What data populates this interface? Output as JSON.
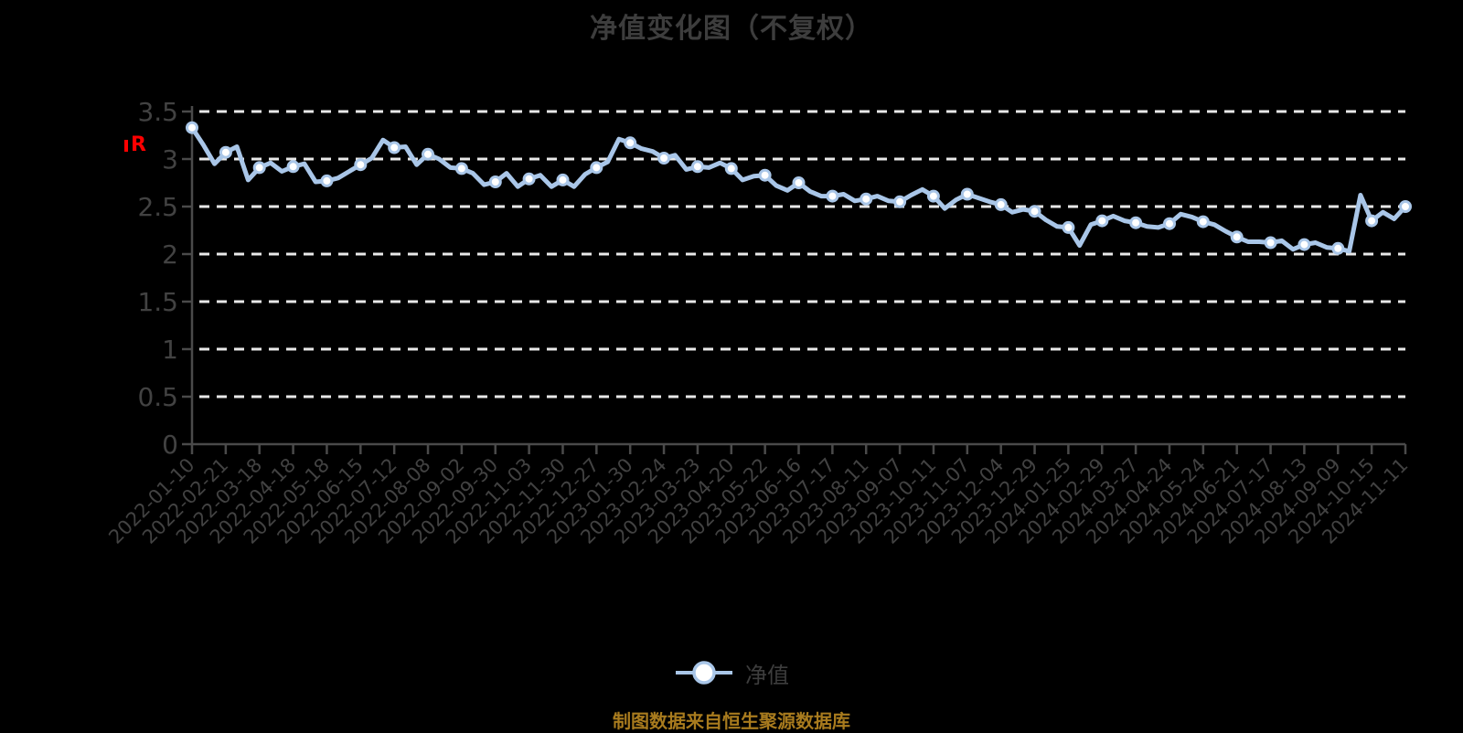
{
  "chart": {
    "title": "净值变化图（不复权）",
    "red_mark": "R"
  },
  "legend": {
    "label": "净值"
  },
  "footer": {
    "source": "制图数据来自恒生聚源数据库"
  },
  "chart_data": {
    "type": "line",
    "title": "净值变化图（不复权）",
    "series_name": "净值",
    "legend_position": "bottom-center",
    "grid": "horizontal-dashed",
    "ylim": [
      0,
      3.5
    ],
    "y_ticks": [
      0,
      0.5,
      1,
      1.5,
      2,
      2.5,
      3,
      3.5
    ],
    "y_tick_labels": [
      "0",
      "0.5",
      "1",
      "1.5",
      "2",
      "2.5",
      "3",
      "3.5"
    ],
    "x_tick_labels": [
      "2022-01-10",
      "2022-02-21",
      "2022-03-18",
      "2022-04-18",
      "2022-05-18",
      "2022-06-15",
      "2022-07-12",
      "2022-08-08",
      "2022-09-02",
      "2022-09-30",
      "2022-11-03",
      "2022-11-30",
      "2022-12-27",
      "2023-01-30",
      "2023-02-24",
      "2023-03-23",
      "2023-04-20",
      "2023-05-22",
      "2023-06-16",
      "2023-07-17",
      "2023-08-11",
      "2023-09-07",
      "2023-10-11",
      "2023-11-07",
      "2023-12-04",
      "2023-12-29",
      "2024-01-25",
      "2024-02-29",
      "2024-03-27",
      "2024-04-24",
      "2024-05-24",
      "2024-06-21",
      "2024-07-17",
      "2024-08-13",
      "2024-09-09",
      "2024-10-15",
      "2024-11-11"
    ],
    "marker_every": 3,
    "values": [
      3.33,
      3.15,
      2.95,
      3.07,
      3.13,
      2.78,
      2.91,
      2.96,
      2.87,
      2.92,
      2.95,
      2.76,
      2.77,
      2.8,
      2.87,
      2.94,
      3.01,
      3.2,
      3.12,
      3.13,
      2.94,
      3.05,
      3.0,
      2.91,
      2.9,
      2.85,
      2.73,
      2.76,
      2.85,
      2.71,
      2.79,
      2.83,
      2.71,
      2.78,
      2.71,
      2.84,
      2.91,
      2.97,
      3.21,
      3.17,
      3.11,
      3.08,
      3.01,
      3.04,
      2.89,
      2.92,
      2.91,
      2.96,
      2.9,
      2.78,
      2.82,
      2.83,
      2.72,
      2.67,
      2.75,
      2.66,
      2.61,
      2.61,
      2.63,
      2.56,
      2.58,
      2.61,
      2.56,
      2.55,
      2.62,
      2.68,
      2.61,
      2.48,
      2.57,
      2.63,
      2.59,
      2.55,
      2.52,
      2.44,
      2.47,
      2.45,
      2.36,
      2.29,
      2.28,
      2.09,
      2.31,
      2.35,
      2.4,
      2.35,
      2.33,
      2.29,
      2.28,
      2.32,
      2.42,
      2.39,
      2.34,
      2.31,
      2.24,
      2.18,
      2.13,
      2.13,
      2.12,
      2.14,
      2.05,
      2.1,
      2.12,
      2.07,
      2.06,
      2.03,
      2.62,
      2.35,
      2.44,
      2.37,
      2.5
    ],
    "marker_values_note": "markers shown at every 3rd point, aligned with x_tick_labels",
    "colors": {
      "background": "#000000",
      "title": "#3d3d3d",
      "tick_label": "#424242",
      "axis": "#4a4a4a",
      "grid": "#e8e8e8",
      "line": "#a9c6e8",
      "marker_fill": "#ffffff",
      "source": "#a87b1e",
      "red_mark": "#ff0000"
    }
  }
}
